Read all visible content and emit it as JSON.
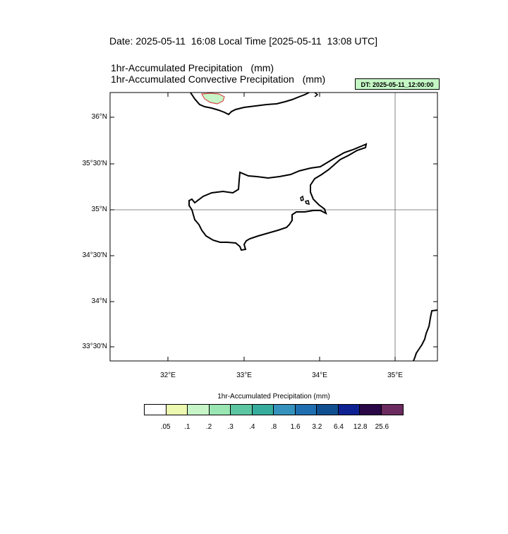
{
  "header": {
    "date_line": "Date: 2025-05-11  16:08 Local Time [2025-05-11  13:08 UTC]",
    "title_1": "1hr-Accumulated Precipitation   (mm)",
    "title_2": "1hr-Accumulated Convective Precipitation   (mm)",
    "dt_badge": "DT: 2025-05-11_12:00:00"
  },
  "map": {
    "lat_labels": [
      "36°N",
      "35°30'N",
      "35°N",
      "34°30'N",
      "34°N",
      "33°30'N"
    ],
    "lon_labels": [
      "32°E",
      "33°E",
      "34°E",
      "35°E"
    ],
    "gridlines": [
      "35°N",
      "35°E"
    ]
  },
  "legend": {
    "title": "1hr-Accumulated Precipitation  (mm)",
    "colors": [
      "#ffffff",
      "#edf8b1",
      "#c7f5c7",
      "#99e6b3",
      "#5cc6a2",
      "#36ac9c",
      "#3592bd",
      "#1f6fb0",
      "#0f4f8f",
      "#0e2191",
      "#2a0747",
      "#6b2b5e"
    ],
    "ticks": [
      ".05",
      ".1",
      ".2",
      ".3",
      ".4",
      ".8",
      "1.6",
      "3.2",
      "6.4",
      "12.8",
      "25.6"
    ]
  }
}
